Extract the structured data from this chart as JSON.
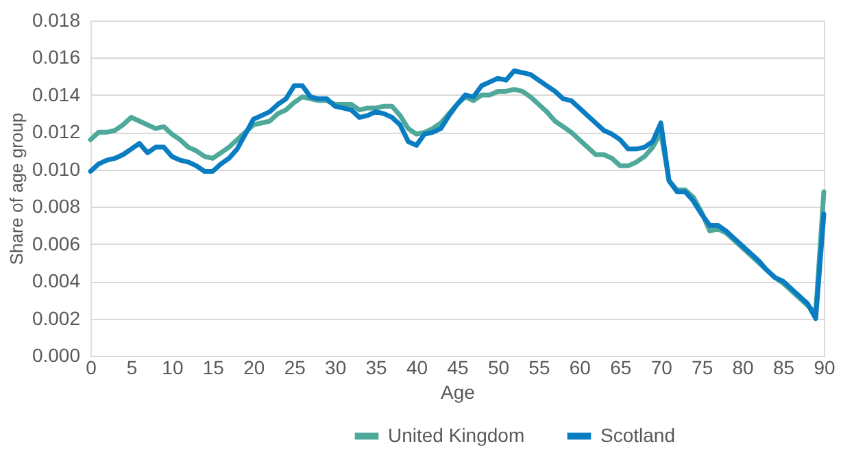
{
  "chart_data": {
    "type": "line",
    "xlabel": "Age",
    "ylabel": "Share of age group",
    "x": [
      0,
      1,
      2,
      3,
      4,
      5,
      6,
      7,
      8,
      9,
      10,
      11,
      12,
      13,
      14,
      15,
      16,
      17,
      18,
      19,
      20,
      21,
      22,
      23,
      24,
      25,
      26,
      27,
      28,
      29,
      30,
      31,
      32,
      33,
      34,
      35,
      36,
      37,
      38,
      39,
      40,
      41,
      42,
      43,
      44,
      45,
      46,
      47,
      48,
      49,
      50,
      51,
      52,
      53,
      54,
      55,
      56,
      57,
      58,
      59,
      60,
      61,
      62,
      63,
      64,
      65,
      66,
      67,
      68,
      69,
      70,
      71,
      72,
      73,
      74,
      75,
      76,
      77,
      78,
      79,
      80,
      81,
      82,
      83,
      84,
      85,
      86,
      87,
      88,
      89,
      90
    ],
    "series": [
      {
        "name": "United Kingdom",
        "color": "#4ea99b",
        "values": [
          0.0116,
          0.012,
          0.012,
          0.0121,
          0.0124,
          0.0128,
          0.0126,
          0.0124,
          0.0122,
          0.0123,
          0.0119,
          0.0116,
          0.0112,
          0.011,
          0.0107,
          0.0106,
          0.0109,
          0.0112,
          0.0116,
          0.012,
          0.0124,
          0.0125,
          0.0126,
          0.013,
          0.0132,
          0.0136,
          0.0139,
          0.0138,
          0.0137,
          0.0137,
          0.0135,
          0.0135,
          0.0135,
          0.0132,
          0.0133,
          0.0133,
          0.0134,
          0.0134,
          0.0129,
          0.0122,
          0.0119,
          0.012,
          0.0122,
          0.0125,
          0.013,
          0.0135,
          0.0139,
          0.0137,
          0.014,
          0.014,
          0.0142,
          0.0142,
          0.0143,
          0.0142,
          0.0139,
          0.0135,
          0.0131,
          0.0126,
          0.0123,
          0.012,
          0.0116,
          0.0112,
          0.0108,
          0.0108,
          0.0106,
          0.0102,
          0.0102,
          0.0104,
          0.0107,
          0.0112,
          0.012,
          0.0094,
          0.0089,
          0.0089,
          0.0085,
          0.0077,
          0.0067,
          0.0068,
          0.0066,
          0.0062,
          0.0058,
          0.0054,
          0.005,
          0.0046,
          0.0042,
          0.0039,
          0.0035,
          0.0031,
          0.0027,
          0.0023,
          0.0088
        ]
      },
      {
        "name": "Scotland",
        "color": "#0a7dc2",
        "values": [
          0.0099,
          0.0103,
          0.0105,
          0.0106,
          0.0108,
          0.0111,
          0.0114,
          0.0109,
          0.0112,
          0.0112,
          0.0107,
          0.0105,
          0.0104,
          0.0102,
          0.0099,
          0.0099,
          0.0103,
          0.0106,
          0.0111,
          0.0119,
          0.0127,
          0.0129,
          0.0131,
          0.0135,
          0.0138,
          0.0145,
          0.0145,
          0.0139,
          0.0138,
          0.0138,
          0.0134,
          0.0133,
          0.0132,
          0.0128,
          0.0129,
          0.0131,
          0.013,
          0.0128,
          0.0124,
          0.0115,
          0.0113,
          0.0119,
          0.012,
          0.0122,
          0.0129,
          0.0135,
          0.014,
          0.0139,
          0.0145,
          0.0147,
          0.0149,
          0.0148,
          0.0153,
          0.0152,
          0.0151,
          0.0148,
          0.0145,
          0.0142,
          0.0138,
          0.0137,
          0.0133,
          0.0129,
          0.0125,
          0.0121,
          0.0119,
          0.0116,
          0.0111,
          0.0111,
          0.0112,
          0.0115,
          0.0125,
          0.0094,
          0.0088,
          0.0088,
          0.0083,
          0.0076,
          0.007,
          0.007,
          0.0067,
          0.0063,
          0.0059,
          0.0055,
          0.0051,
          0.0046,
          0.0042,
          0.004,
          0.0036,
          0.0032,
          0.0028,
          0.002,
          0.0076
        ]
      }
    ],
    "xlim": [
      0,
      90
    ],
    "xticks": [
      0,
      5,
      10,
      15,
      20,
      25,
      30,
      35,
      40,
      45,
      50,
      55,
      60,
      65,
      70,
      75,
      80,
      85,
      90
    ],
    "ylim": [
      0,
      0.018
    ],
    "yticks": [
      {
        "value": 0,
        "label": "0.000"
      },
      {
        "value": 0.002,
        "label": "0.002"
      },
      {
        "value": 0.004,
        "label": "0.004"
      },
      {
        "value": 0.006,
        "label": "0.006"
      },
      {
        "value": 0.008,
        "label": "0.008"
      },
      {
        "value": 0.01,
        "label": "0.010"
      },
      {
        "value": 0.012,
        "label": "0.012"
      },
      {
        "value": 0.014,
        "label": "0.014"
      },
      {
        "value": 0.016,
        "label": "0.016"
      },
      {
        "value": 0.018,
        "label": "0.018"
      }
    ],
    "grid": "y",
    "legend": "bottom",
    "marker": "none",
    "line_style": "solid"
  }
}
